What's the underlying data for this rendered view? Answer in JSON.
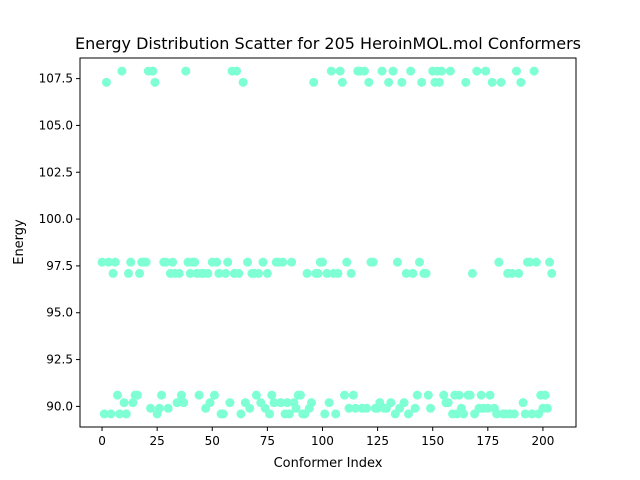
{
  "chart_data": {
    "type": "scatter",
    "title": "Energy Distribution Scatter for 205 HeroinMOL.mol Conformers",
    "xlabel": "Conformer Index",
    "ylabel": "Energy",
    "xlim": [
      -10,
      215
    ],
    "ylim": [
      88.9,
      108.6
    ],
    "xticks": [
      0,
      25,
      50,
      75,
      100,
      125,
      150,
      175,
      200
    ],
    "yticks": [
      90.0,
      92.5,
      95.0,
      97.5,
      100.0,
      102.5,
      105.0,
      107.5
    ],
    "xtick_labels": [
      "0",
      "25",
      "50",
      "75",
      "100",
      "125",
      "150",
      "175",
      "200"
    ],
    "ytick_labels": [
      "90.0",
      "92.5",
      "95.0",
      "97.5",
      "100.0",
      "102.5",
      "105.0",
      "107.5"
    ],
    "grid": false,
    "marker_color": "#7fffd4",
    "points": [
      [
        0,
        97.7
      ],
      [
        1,
        89.6
      ],
      [
        2,
        107.3
      ],
      [
        3,
        97.7
      ],
      [
        4,
        89.6
      ],
      [
        5,
        97.1
      ],
      [
        6,
        97.7
      ],
      [
        7,
        90.6
      ],
      [
        8,
        89.6
      ],
      [
        9,
        107.9
      ],
      [
        10,
        90.2
      ],
      [
        11,
        89.6
      ],
      [
        12,
        97.1
      ],
      [
        13,
        97.7
      ],
      [
        14,
        90.2
      ],
      [
        15,
        90.6
      ],
      [
        16,
        90.6
      ],
      [
        17,
        97.1
      ],
      [
        18,
        97.7
      ],
      [
        19,
        97.7
      ],
      [
        20,
        97.7
      ],
      [
        21,
        107.9
      ],
      [
        22,
        89.9
      ],
      [
        23,
        107.9
      ],
      [
        24,
        107.3
      ],
      [
        25,
        89.6
      ],
      [
        26,
        89.9
      ],
      [
        27,
        90.6
      ],
      [
        28,
        97.7
      ],
      [
        29,
        97.7
      ],
      [
        30,
        89.9
      ],
      [
        31,
        97.1
      ],
      [
        32,
        97.7
      ],
      [
        33,
        97.1
      ],
      [
        34,
        90.2
      ],
      [
        35,
        97.1
      ],
      [
        36,
        90.6
      ],
      [
        37,
        90.2
      ],
      [
        38,
        107.9
      ],
      [
        39,
        97.7
      ],
      [
        40,
        97.1
      ],
      [
        41,
        97.7
      ],
      [
        42,
        97.7
      ],
      [
        43,
        97.1
      ],
      [
        44,
        90.6
      ],
      [
        45,
        97.1
      ],
      [
        46,
        97.1
      ],
      [
        47,
        89.9
      ],
      [
        48,
        97.1
      ],
      [
        49,
        90.2
      ],
      [
        50,
        97.7
      ],
      [
        51,
        90.6
      ],
      [
        52,
        97.7
      ],
      [
        53,
        97.1
      ],
      [
        54,
        89.6
      ],
      [
        55,
        89.6
      ],
      [
        56,
        97.1
      ],
      [
        57,
        97.7
      ],
      [
        58,
        90.2
      ],
      [
        59,
        107.9
      ],
      [
        60,
        97.1
      ],
      [
        61,
        107.9
      ],
      [
        62,
        97.1
      ],
      [
        63,
        89.6
      ],
      [
        64,
        107.3
      ],
      [
        65,
        90.2
      ],
      [
        66,
        97.7
      ],
      [
        67,
        89.9
      ],
      [
        68,
        97.1
      ],
      [
        69,
        97.1
      ],
      [
        70,
        90.6
      ],
      [
        71,
        97.1
      ],
      [
        72,
        90.2
      ],
      [
        73,
        97.7
      ],
      [
        74,
        89.9
      ],
      [
        75,
        97.1
      ],
      [
        76,
        89.6
      ],
      [
        77,
        90.6
      ],
      [
        78,
        90.2
      ],
      [
        79,
        97.7
      ],
      [
        80,
        97.7
      ],
      [
        81,
        90.2
      ],
      [
        82,
        97.7
      ],
      [
        83,
        89.6
      ],
      [
        84,
        90.2
      ],
      [
        85,
        89.6
      ],
      [
        86,
        97.7
      ],
      [
        87,
        90.2
      ],
      [
        88,
        89.9
      ],
      [
        89,
        90.6
      ],
      [
        90,
        90.6
      ],
      [
        91,
        89.6
      ],
      [
        92,
        89.6
      ],
      [
        93,
        97.1
      ],
      [
        94,
        89.9
      ],
      [
        95,
        90.2
      ],
      [
        96,
        107.3
      ],
      [
        97,
        97.1
      ],
      [
        98,
        97.1
      ],
      [
        99,
        97.7
      ],
      [
        100,
        97.7
      ],
      [
        101,
        89.6
      ],
      [
        102,
        97.1
      ],
      [
        103,
        90.2
      ],
      [
        104,
        107.9
      ],
      [
        105,
        97.1
      ],
      [
        106,
        89.6
      ],
      [
        107,
        97.1
      ],
      [
        108,
        107.9
      ],
      [
        109,
        107.3
      ],
      [
        110,
        90.6
      ],
      [
        111,
        97.7
      ],
      [
        112,
        89.9
      ],
      [
        113,
        97.1
      ],
      [
        114,
        90.6
      ],
      [
        115,
        89.9
      ],
      [
        116,
        107.9
      ],
      [
        117,
        107.9
      ],
      [
        118,
        89.9
      ],
      [
        119,
        107.9
      ],
      [
        120,
        89.9
      ],
      [
        121,
        107.3
      ],
      [
        122,
        97.7
      ],
      [
        123,
        97.7
      ],
      [
        124,
        89.9
      ],
      [
        125,
        89.9
      ],
      [
        126,
        90.2
      ],
      [
        127,
        107.9
      ],
      [
        128,
        89.9
      ],
      [
        129,
        89.9
      ],
      [
        130,
        107.3
      ],
      [
        131,
        90.2
      ],
      [
        132,
        107.9
      ],
      [
        133,
        89.6
      ],
      [
        134,
        97.7
      ],
      [
        135,
        89.9
      ],
      [
        136,
        107.3
      ],
      [
        137,
        90.2
      ],
      [
        138,
        97.1
      ],
      [
        139,
        89.6
      ],
      [
        140,
        107.9
      ],
      [
        141,
        97.1
      ],
      [
        142,
        89.9
      ],
      [
        143,
        90.6
      ],
      [
        144,
        97.7
      ],
      [
        145,
        107.3
      ],
      [
        146,
        97.1
      ],
      [
        147,
        97.1
      ],
      [
        148,
        90.6
      ],
      [
        149,
        89.9
      ],
      [
        150,
        107.9
      ],
      [
        151,
        107.3
      ],
      [
        152,
        107.9
      ],
      [
        153,
        107.3
      ],
      [
        154,
        107.9
      ],
      [
        155,
        90.6
      ],
      [
        156,
        90.2
      ],
      [
        157,
        90.2
      ],
      [
        158,
        107.9
      ],
      [
        159,
        89.6
      ],
      [
        160,
        90.6
      ],
      [
        161,
        89.6
      ],
      [
        162,
        90.6
      ],
      [
        163,
        89.9
      ],
      [
        164,
        89.6
      ],
      [
        165,
        107.3
      ],
      [
        166,
        90.6
      ],
      [
        167,
        90.6
      ],
      [
        168,
        97.1
      ],
      [
        169,
        89.6
      ],
      [
        170,
        107.9
      ],
      [
        171,
        89.9
      ],
      [
        172,
        90.6
      ],
      [
        173,
        89.9
      ],
      [
        174,
        107.9
      ],
      [
        175,
        89.9
      ],
      [
        176,
        90.6
      ],
      [
        177,
        107.3
      ],
      [
        178,
        89.9
      ],
      [
        179,
        89.6
      ],
      [
        180,
        97.7
      ],
      [
        181,
        107.3
      ],
      [
        182,
        89.6
      ],
      [
        183,
        89.6
      ],
      [
        184,
        97.1
      ],
      [
        185,
        89.6
      ],
      [
        186,
        97.1
      ],
      [
        187,
        89.6
      ],
      [
        188,
        107.9
      ],
      [
        189,
        97.1
      ],
      [
        190,
        107.3
      ],
      [
        191,
        90.2
      ],
      [
        192,
        89.6
      ],
      [
        193,
        97.7
      ],
      [
        194,
        97.7
      ],
      [
        195,
        89.6
      ],
      [
        196,
        107.9
      ],
      [
        197,
        97.7
      ],
      [
        198,
        89.6
      ],
      [
        199,
        90.6
      ],
      [
        200,
        89.9
      ],
      [
        201,
        90.6
      ],
      [
        202,
        89.9
      ],
      [
        203,
        97.7
      ],
      [
        204,
        97.1
      ]
    ]
  }
}
